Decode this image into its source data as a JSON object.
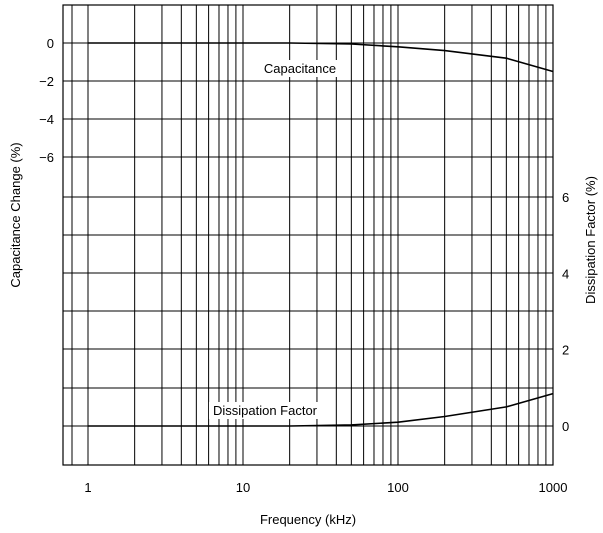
{
  "chart_data": {
    "type": "line",
    "title": "",
    "xlabel": "Frequency (kHz)",
    "ylabel_left": "Capacitance Change (%)",
    "ylabel_right": "Dissipation Factor (%)",
    "x_scale": "log",
    "xlim": [
      1,
      1000
    ],
    "x_ticks": [
      1,
      10,
      100,
      1000
    ],
    "y_left_ticks": [
      0,
      -2,
      -4,
      -6
    ],
    "y_right_ticks": [
      0,
      2,
      4,
      6
    ],
    "grid": true,
    "series": [
      {
        "name": "Capacitance",
        "axis": "left",
        "x": [
          1,
          2,
          5,
          10,
          20,
          50,
          100,
          200,
          500,
          1000
        ],
        "y": [
          0,
          0,
          0,
          0,
          0,
          -0.05,
          -0.2,
          -0.4,
          -0.8,
          -1.5
        ]
      },
      {
        "name": "Dissipation Factor",
        "axis": "right",
        "x": [
          1,
          2,
          5,
          10,
          20,
          50,
          100,
          200,
          500,
          1000
        ],
        "y": [
          0,
          0,
          0,
          0,
          0,
          0.03,
          0.1,
          0.25,
          0.5,
          0.85
        ]
      }
    ]
  }
}
